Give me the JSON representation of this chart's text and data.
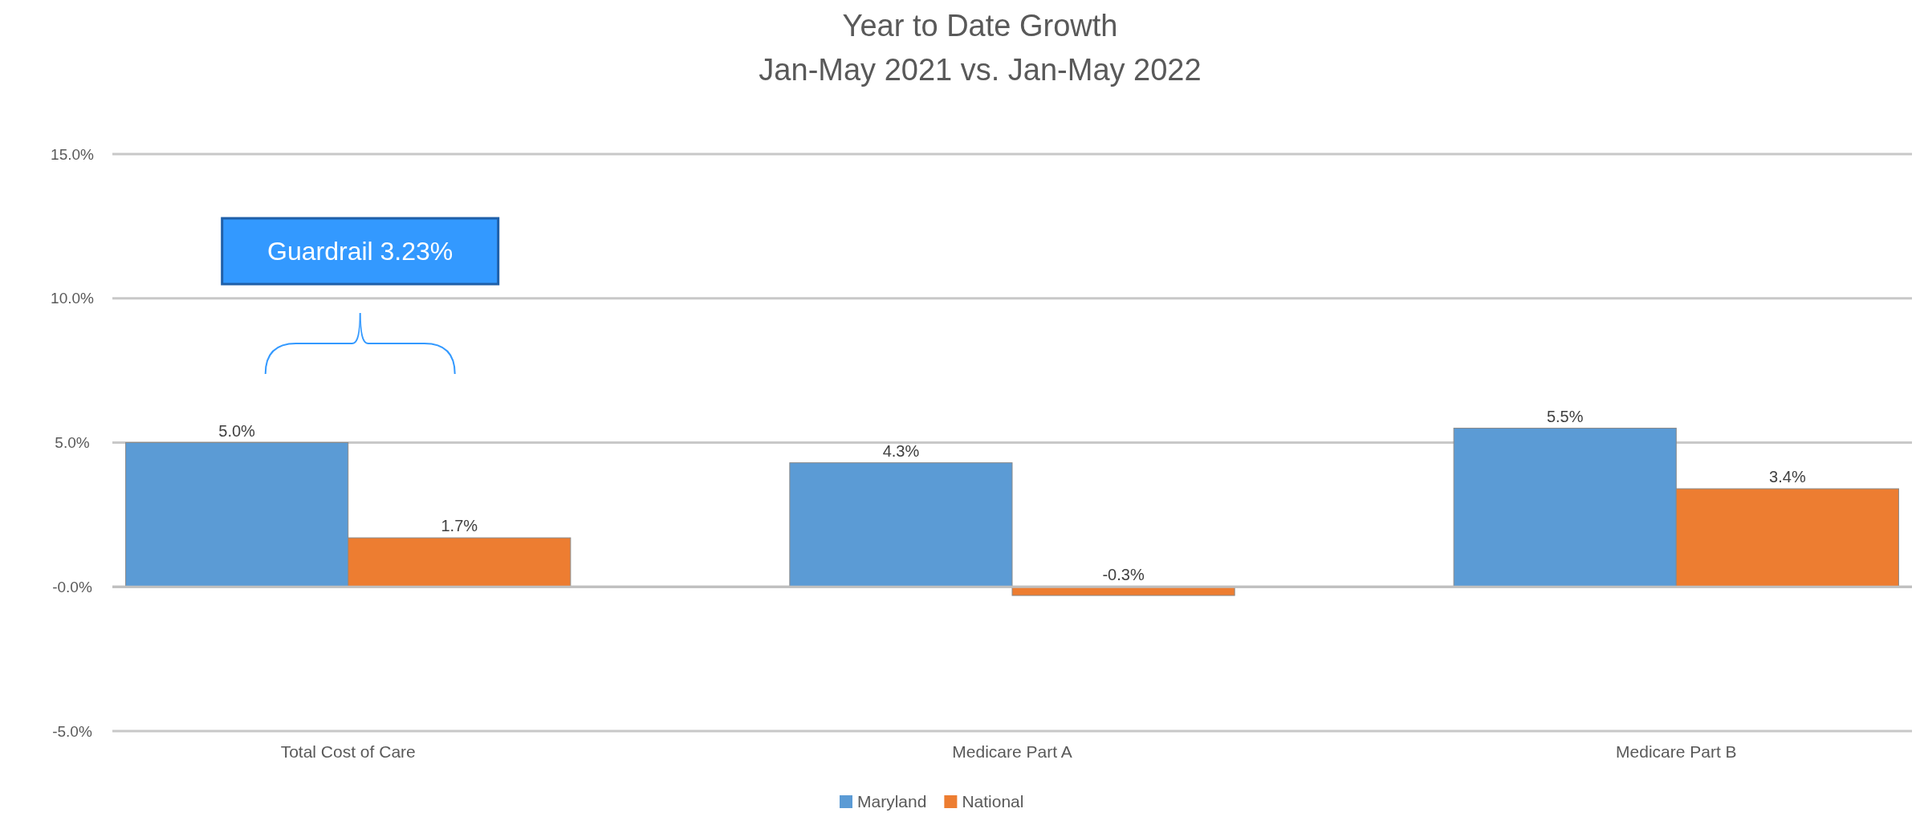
{
  "chart_data": {
    "type": "bar",
    "title": "Year to Date Growth",
    "subtitle": "Jan-May 2021 vs. Jan-May 2022",
    "categories": [
      "Total Cost of Care",
      "Medicare Part A",
      "Medicare Part B"
    ],
    "series": [
      {
        "name": "Maryland",
        "color": "#5b9bd5",
        "values": [
          5.0,
          4.3,
          5.5
        ],
        "value_labels": [
          "5.0%",
          "4.3%",
          "5.5%"
        ]
      },
      {
        "name": "National",
        "color": "#ed7d31",
        "values": [
          1.7,
          -0.3,
          3.4
        ],
        "value_labels": [
          "1.7%",
          "-0.3%",
          "3.4%"
        ]
      }
    ],
    "ylim": [
      -5,
      15
    ],
    "yticks": [
      {
        "value": -5,
        "label": "-5.0%"
      },
      {
        "value": 0,
        "label": "-0.0%"
      },
      {
        "value": 5,
        "label": "5.0%"
      },
      {
        "value": 10,
        "label": "10.0%"
      },
      {
        "value": 15,
        "label": "15.0%"
      }
    ],
    "grid": "y",
    "legend": "bottom",
    "annotations": [
      "Guardrail 3.23%"
    ]
  }
}
